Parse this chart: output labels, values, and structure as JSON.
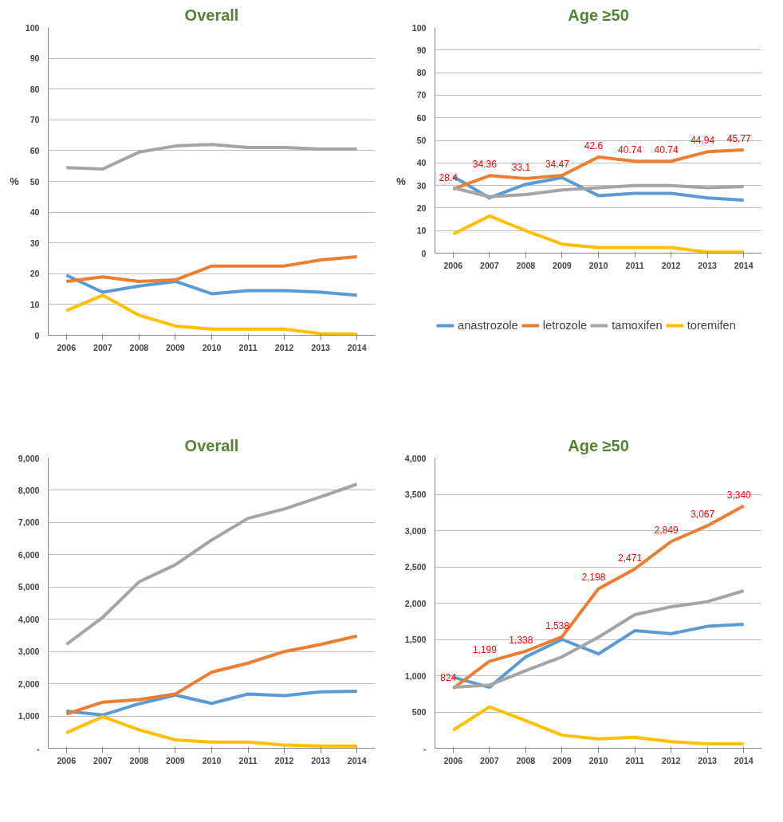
{
  "chart_data": [
    {
      "type": "line",
      "title": "Overall",
      "ylabel": "%",
      "categories": [
        "2006",
        "2007",
        "2008",
        "2009",
        "2010",
        "2011",
        "2012",
        "2013",
        "2014"
      ],
      "ylim": [
        0,
        100
      ],
      "yticks": [
        0,
        10,
        20,
        30,
        40,
        50,
        60,
        70,
        80,
        90,
        100
      ],
      "grid": "y",
      "legend": false,
      "marker": "none",
      "line_style": "solid",
      "series": [
        {
          "color": "#5b9bd5",
          "values": [
            19.5,
            14,
            16,
            17.5,
            13.5,
            14.5,
            14.5,
            14,
            13
          ]
        },
        {
          "color": "#ed7d31",
          "values": [
            17.5,
            19,
            17.5,
            18,
            22.5,
            22.5,
            22.5,
            24.5,
            25.5
          ]
        },
        {
          "color": "#a5a5a5",
          "values": [
            54.5,
            54,
            59.5,
            61.5,
            62,
            61,
            61,
            60.5,
            60.5
          ]
        },
        {
          "color": "#ffc000",
          "values": [
            8,
            13,
            6.5,
            3,
            2,
            2,
            2,
            0.5,
            0.3
          ]
        }
      ]
    },
    {
      "type": "line",
      "title": "Age ≥50",
      "ylabel": "%",
      "categories": [
        "2006",
        "2007",
        "2008",
        "2009",
        "2010",
        "2011",
        "2012",
        "2013",
        "2014"
      ],
      "ylim": [
        0,
        100
      ],
      "yticks": [
        0,
        10,
        20,
        30,
        40,
        50,
        60,
        70,
        80,
        90,
        100
      ],
      "grid": "y",
      "legend": "bottom",
      "marker": "none",
      "line_style": "solid",
      "series": [
        {
          "name": "anastrozole",
          "color": "#5b9bd5",
          "values": [
            34,
            24.5,
            30.5,
            33.5,
            25.5,
            26.5,
            26.5,
            24.5,
            23.5
          ]
        },
        {
          "name": "letrozole",
          "color": "#ed7d31",
          "values": [
            28.4,
            34.36,
            33.1,
            34.47,
            42.6,
            40.74,
            40.74,
            44.94,
            45.77
          ],
          "value_labels": [
            "28.4",
            "34.36",
            "33.1",
            "34.47",
            "42.6",
            "40.74",
            "40.74",
            "44.94",
            "45.77"
          ]
        },
        {
          "name": "tamoxifen",
          "color": "#a5a5a5",
          "values": [
            29,
            25,
            26,
            28,
            29,
            30,
            30,
            29,
            29.5
          ]
        },
        {
          "name": "toremifen",
          "color": "#ffc000",
          "values": [
            8.5,
            16.5,
            10,
            4,
            2.5,
            2.5,
            2.5,
            0.5,
            0.5
          ]
        }
      ]
    },
    {
      "type": "line",
      "title": "Overall",
      "categories": [
        "2006",
        "2007",
        "2008",
        "2009",
        "2010",
        "2011",
        "2012",
        "2013",
        "2014"
      ],
      "ylim": [
        0,
        9000
      ],
      "yticks": [
        {
          "value": 0,
          "label": "-"
        },
        {
          "value": 1000,
          "label": "1,000"
        },
        {
          "value": 2000,
          "label": "2,000"
        },
        {
          "value": 3000,
          "label": "3,000"
        },
        {
          "value": 4000,
          "label": "4,000"
        },
        {
          "value": 5000,
          "label": "5,000"
        },
        {
          "value": 6000,
          "label": "6,000"
        },
        {
          "value": 7000,
          "label": "7,000"
        },
        {
          "value": 8000,
          "label": "8,000"
        },
        {
          "value": 9000,
          "label": "9,000"
        }
      ],
      "grid": "y",
      "legend": false,
      "marker": "none",
      "line_style": "solid",
      "series": [
        {
          "color": "#5b9bd5",
          "values": [
            1150,
            1030,
            1380,
            1650,
            1390,
            1680,
            1630,
            1750,
            1770
          ]
        },
        {
          "color": "#ed7d31",
          "values": [
            1060,
            1430,
            1510,
            1680,
            2360,
            2640,
            3000,
            3220,
            3480
          ]
        },
        {
          "color": "#a5a5a5",
          "values": [
            3220,
            4060,
            5160,
            5690,
            6460,
            7130,
            7420,
            7800,
            8190
          ]
        },
        {
          "color": "#ffc000",
          "values": [
            480,
            980,
            570,
            260,
            190,
            190,
            100,
            70,
            70
          ]
        }
      ]
    },
    {
      "type": "line",
      "title": "Age ≥50",
      "categories": [
        "2006",
        "2007",
        "2008",
        "2009",
        "2010",
        "2011",
        "2012",
        "2013",
        "2014"
      ],
      "ylim": [
        0,
        4000
      ],
      "yticks": [
        {
          "value": 0,
          "label": "-"
        },
        {
          "value": 500,
          "label": "500"
        },
        {
          "value": 1000,
          "label": "1,000"
        },
        {
          "value": 1500,
          "label": "1,500"
        },
        {
          "value": 2000,
          "label": "2,000"
        },
        {
          "value": 2500,
          "label": "2,500"
        },
        {
          "value": 3000,
          "label": "3,000"
        },
        {
          "value": 3500,
          "label": "3,500"
        },
        {
          "value": 4000,
          "label": "4,000"
        }
      ],
      "grid": "y",
      "legend": false,
      "marker": "none",
      "line_style": "solid",
      "series": [
        {
          "color": "#5b9bd5",
          "values": [
            980,
            840,
            1260,
            1500,
            1300,
            1620,
            1580,
            1680,
            1710
          ]
        },
        {
          "color": "#ed7d31",
          "values": [
            824,
            1199,
            1338,
            1538,
            2198,
            2471,
            2849,
            3067,
            3340
          ],
          "value_labels": [
            "824",
            "1,199",
            "1,338",
            "1,538",
            "2,198",
            "2,471",
            "2,849",
            "3,067",
            "3,340"
          ]
        },
        {
          "color": "#a5a5a5",
          "values": [
            840,
            870,
            1070,
            1260,
            1530,
            1840,
            1950,
            2020,
            2170
          ]
        },
        {
          "color": "#ffc000",
          "values": [
            250,
            570,
            380,
            180,
            130,
            150,
            90,
            60,
            60
          ]
        }
      ]
    }
  ]
}
